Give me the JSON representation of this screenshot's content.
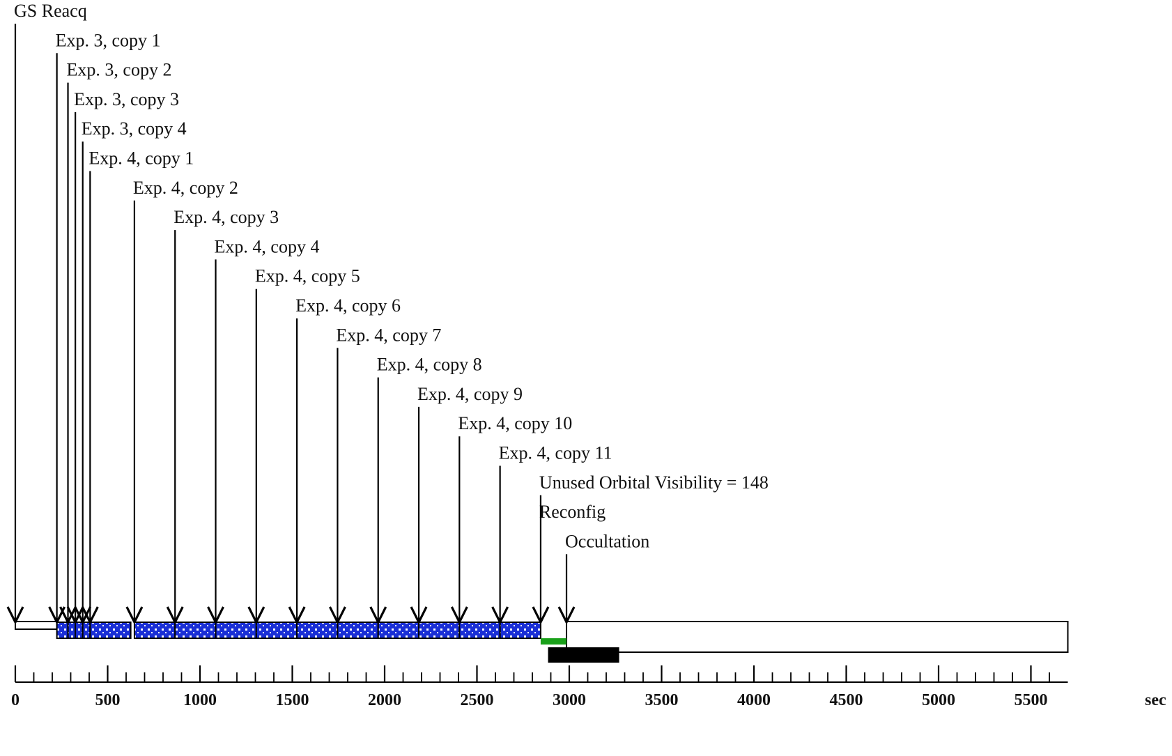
{
  "timeline": {
    "axis": {
      "min": 0,
      "max": 5700,
      "unit_label": "sec",
      "major_ticks": [
        0,
        500,
        1000,
        1500,
        2000,
        2500,
        3000,
        3500,
        4000,
        4500,
        5000,
        5500
      ],
      "minor_step": 100
    },
    "events": [
      {
        "label": "GS Reacq",
        "t": 0
      },
      {
        "label": "Exp. 3, copy 1",
        "t": 225
      },
      {
        "label": "Exp. 3, copy 2",
        "t": 285
      },
      {
        "label": "Exp. 3, copy 3",
        "t": 325
      },
      {
        "label": "Exp. 3, copy 4",
        "t": 365
      },
      {
        "label": "Exp. 4, copy 1",
        "t": 405
      },
      {
        "label": "Exp. 4, copy 2",
        "t": 645
      },
      {
        "label": "Exp. 4, copy 3",
        "t": 865
      },
      {
        "label": "Exp. 4, copy 4",
        "t": 1085
      },
      {
        "label": "Exp. 4, copy 5",
        "t": 1305
      },
      {
        "label": "Exp. 4, copy 6",
        "t": 1525
      },
      {
        "label": "Exp. 4, copy 7",
        "t": 1745
      },
      {
        "label": "Exp. 4, copy 8",
        "t": 1965
      },
      {
        "label": "Exp. 4, copy 9",
        "t": 2185
      },
      {
        "label": "Exp. 4, copy 10",
        "t": 2405
      },
      {
        "label": "Exp. 4, copy 11",
        "t": 2625
      },
      {
        "label": "Unused Orbital Visibility = 148",
        "t": 2845
      },
      {
        "label": "Reconfig",
        "t": 2845
      },
      {
        "label": "Occultation",
        "t": 2985
      }
    ],
    "bars": {
      "reacq_box": {
        "start": 0,
        "end": 225
      },
      "exposure_segments": [
        {
          "start": 225,
          "end": 285
        },
        {
          "start": 285,
          "end": 325
        },
        {
          "start": 325,
          "end": 365
        },
        {
          "start": 365,
          "end": 405
        },
        {
          "start": 405,
          "end": 625
        },
        {
          "start": 645,
          "end": 865
        },
        {
          "start": 865,
          "end": 1085
        },
        {
          "start": 1085,
          "end": 1305
        },
        {
          "start": 1305,
          "end": 1525
        },
        {
          "start": 1525,
          "end": 1745
        },
        {
          "start": 1745,
          "end": 1965
        },
        {
          "start": 1965,
          "end": 2185
        },
        {
          "start": 2185,
          "end": 2405
        },
        {
          "start": 2405,
          "end": 2625
        },
        {
          "start": 2625,
          "end": 2845
        }
      ],
      "reconfig": {
        "start": 2845,
        "end": 2985,
        "color": "#19a019"
      },
      "occultation_box": {
        "start": 2985,
        "end": 5700
      },
      "unused_visibility": {
        "start": 2885,
        "end": 3270,
        "color": "#000000"
      }
    },
    "colors": {
      "exposure_fill": "#1a2fd6",
      "line": "#000000"
    }
  }
}
